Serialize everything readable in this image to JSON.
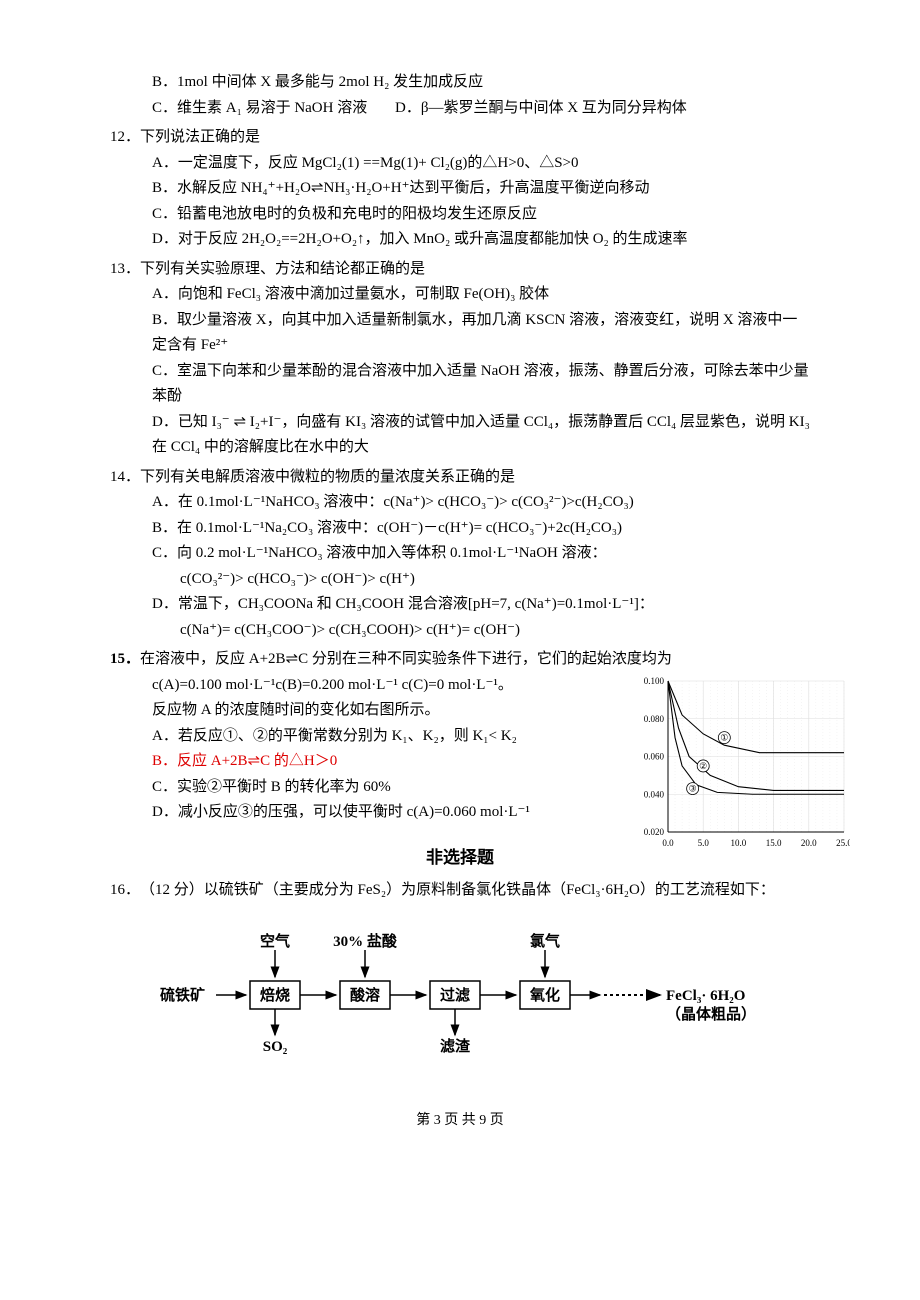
{
  "q11_partial": {
    "B": "B．1mol 中间体 X 最多能与 2mol H₂ 发生加成反应",
    "C": "C．维生素 A₁ 易溶于 NaOH 溶液",
    "D": "D．β—紫罗兰酮与中间体 X 互为同分异构体"
  },
  "q12": {
    "num": "12．",
    "stem": "下列说法正确的是",
    "A": "A．一定温度下，反应 MgCl₂(1) ==Mg(1)+ Cl₂(g)的△H>0、△S>0",
    "B": "B．水解反应 NH₄⁺+H₂O⇌NH₃·H₂O+H⁺达到平衡后，升高温度平衡逆向移动",
    "C": "C．铅蓄电池放电时的负极和充电时的阳极均发生还原反应",
    "D": "D．对于反应 2H₂O₂==2H₂O+O₂↑，加入 MnO₂ 或升高温度都能加快 O₂ 的生成速率"
  },
  "q13": {
    "num": "13．",
    "stem": "下列有关实验原理、方法和结论都正确的是",
    "A": "A．向饱和 FeCl₃ 溶液中滴加过量氨水，可制取 Fe(OH)₃ 胶体",
    "B": "B．取少量溶液 X，向其中加入适量新制氯水，再加几滴 KSCN 溶液，溶液变红，说明 X 溶液中一定含有 Fe²⁺",
    "C": "C．室温下向苯和少量苯酚的混合溶液中加入适量 NaOH 溶液，振荡、静置后分液，可除去苯中少量苯酚",
    "D": "D．已知 I₃⁻ ⇌ I₂+I⁻，向盛有 KI₃ 溶液的试管中加入适量 CCl₄，振荡静置后 CCl₄ 层显紫色，说明 KI₃ 在 CCl₄ 中的溶解度比在水中的大"
  },
  "q14": {
    "num": "14．",
    "stem": "下列有关电解质溶液中微粒的物质的量浓度关系正确的是",
    "A": "A．在 0.1mol·L⁻¹NaHCO₃ 溶液中：c(Na⁺)> c(HCO₃⁻)> c(CO₃²⁻)>c(H₂CO₃)",
    "B": "B．在 0.1mol·L⁻¹Na₂CO₃ 溶液中：c(OH⁻)－c(H⁺)= c(HCO₃⁻)+2c(H₂CO₃)",
    "C": "C．向 0.2 mol·L⁻¹NaHCO₃ 溶液中加入等体积 0.1mol·L⁻¹NaOH 溶液：",
    "C2": "c(CO₃²⁻)> c(HCO₃⁻)> c(OH⁻)> c(H⁺)",
    "D": "D．常温下，CH₃COONa 和 CH₃COOH 混合溶液[pH=7, c(Na⁺)=0.1mol·L⁻¹]：",
    "D2": "c(Na⁺)= c(CH₃COO⁻)> c(CH₃COOH)> c(H⁺)= c(OH⁻)"
  },
  "q15": {
    "num": "15．",
    "stem": "在溶液中，反应 A+2B⇌C 分别在三种不同实验条件下进行，它们的起始浓度均为",
    "line2": "c(A)=0.100 mol·L⁻¹c(B)=0.200 mol·L⁻¹  c(C)=0 mol·L⁻¹。",
    "line3": "反应物 A 的浓度随时间的变化如右图所示。",
    "A": "A．若反应①、②的平衡常数分别为 K₁、K₂，则 K₁< K₂",
    "B": "B．反应 A+2B⇌C 的△H＞0",
    "C": "C．实验②平衡时 B 的转化率为 60%",
    "D": "D．减小反应③的压强，可以使平衡时 c(A)=0.060 mol·L⁻¹"
  },
  "chart": {
    "type": "line",
    "xlim": [
      0,
      25
    ],
    "xtick_step": 5,
    "ylim": [
      0.02,
      0.1
    ],
    "ytick_step": 0.02,
    "yticks": [
      "0.020",
      "0.040",
      "0.060",
      "0.080",
      "0.100"
    ],
    "xticks": [
      "0.0",
      "5.0",
      "10.0",
      "15.0",
      "20.0",
      "25.0"
    ],
    "grid_color": "#dddddd",
    "axis_color": "#000000",
    "line_color": "#000000",
    "background": "#ffffff",
    "series": {
      "1": [
        [
          0,
          0.1
        ],
        [
          2,
          0.082
        ],
        [
          5,
          0.072
        ],
        [
          8,
          0.066
        ],
        [
          13,
          0.062
        ],
        [
          20,
          0.062
        ],
        [
          25,
          0.062
        ]
      ],
      "2": [
        [
          0,
          0.1
        ],
        [
          1.5,
          0.075
        ],
        [
          3,
          0.06
        ],
        [
          6,
          0.05
        ],
        [
          10,
          0.044
        ],
        [
          15,
          0.042
        ],
        [
          25,
          0.042
        ]
      ],
      "3": [
        [
          0,
          0.1
        ],
        [
          1,
          0.07
        ],
        [
          2,
          0.055
        ],
        [
          4,
          0.045
        ],
        [
          7,
          0.041
        ],
        [
          12,
          0.04
        ],
        [
          25,
          0.04
        ]
      ]
    },
    "labels": {
      "1": "①",
      "2": "②",
      "3": "③"
    }
  },
  "section_heading": "非选择题",
  "q16": {
    "num": "16．",
    "stem": "（12 分）以硫铁矿（主要成分为 FeS₂）为原料制备氯化铁晶体（FeCl₃·6H₂O）的工艺流程如下："
  },
  "flow": {
    "inputs": {
      "air": "空气",
      "hcl": "30% 盐酸",
      "cl2": "氯气"
    },
    "start": "硫铁矿",
    "boxes": [
      "焙烧",
      "酸溶",
      "过滤",
      "氧化"
    ],
    "outputs": {
      "so2": "SO₂",
      "residue": "滤渣"
    },
    "product": "FeCl₃· 6H₂O",
    "product2": "（晶体粗品）",
    "box_border": "#000000",
    "box_fill": "#ffffff",
    "arrow_color": "#000000",
    "text_color": "#000000",
    "font_size": 15
  },
  "footer": "第 3 页 共 9 页"
}
